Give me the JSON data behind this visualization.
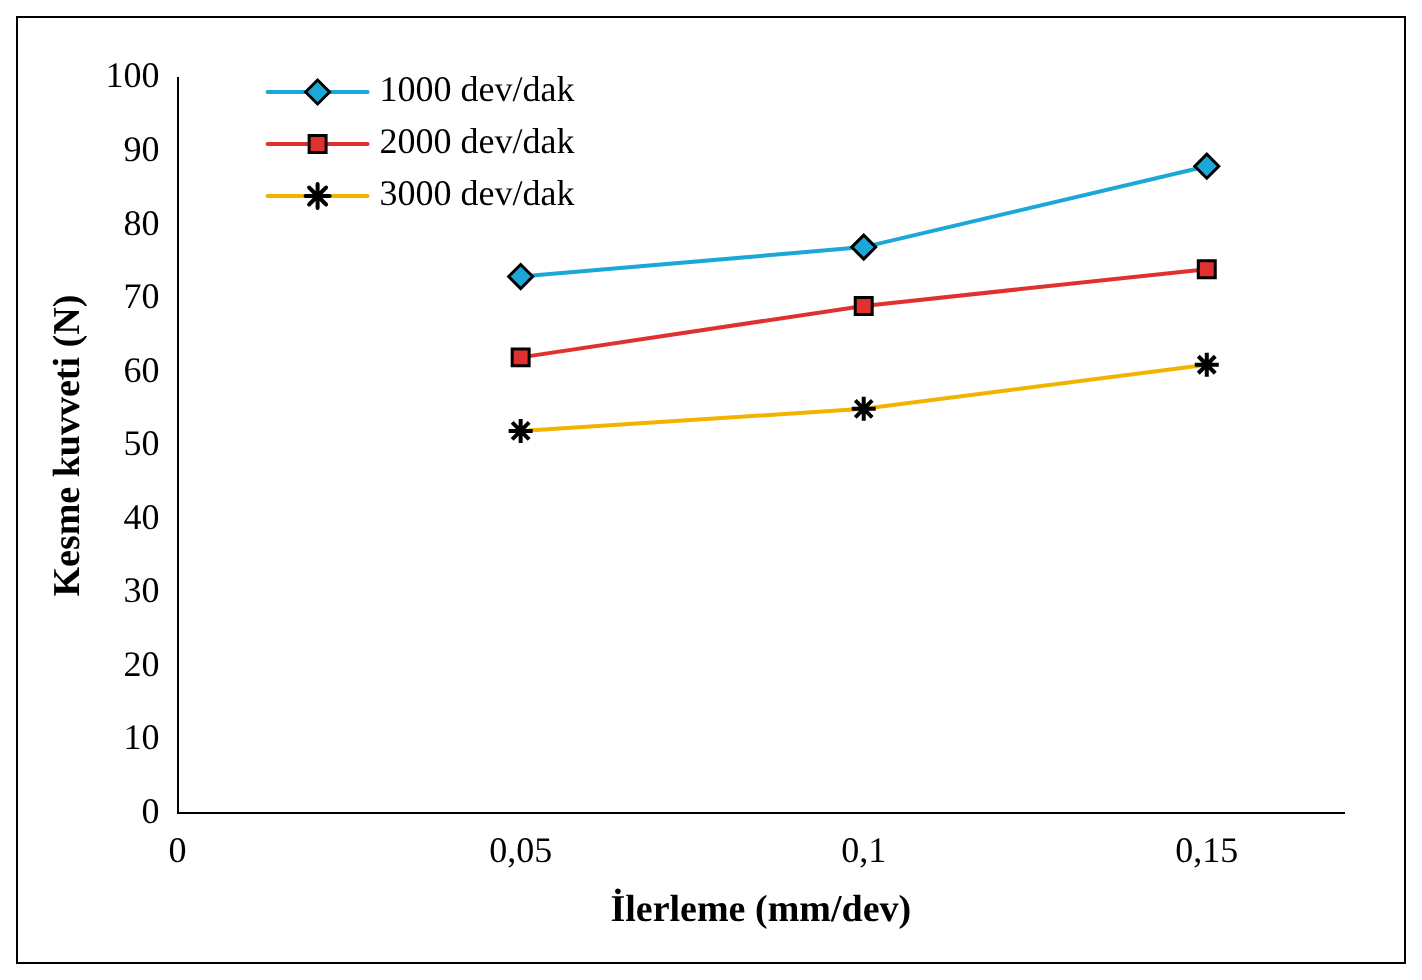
{
  "chart_data": {
    "type": "line",
    "xlabel": "İlerleme (mm/dev)",
    "ylabel": "Kesme kuvveti (N)",
    "x": [
      0.05,
      0.1,
      0.15
    ],
    "series": [
      {
        "name": "1000 dev/dak",
        "color": "#1ba8d8",
        "values": [
          73,
          77,
          88
        ],
        "marker": "diamond"
      },
      {
        "name": "2000 dev/dak",
        "color": "#e03030",
        "values": [
          62,
          69,
          74
        ],
        "marker": "square"
      },
      {
        "name": "3000 dev/dak",
        "color": "#f0b400",
        "values": [
          52,
          55,
          61
        ],
        "marker": "cross"
      }
    ],
    "xlim": [
      0,
      0.17
    ],
    "xticks": [
      0,
      {
        "value": 0.05,
        "label": "0,05"
      },
      {
        "value": 0.1,
        "label": "0,1"
      },
      {
        "value": 0.15,
        "label": "0,15"
      }
    ],
    "ylim": [
      0,
      100
    ],
    "yticks": [
      0,
      10,
      20,
      30,
      40,
      50,
      60,
      70,
      80,
      90,
      100
    ],
    "grid": false,
    "legend": "top left"
  }
}
